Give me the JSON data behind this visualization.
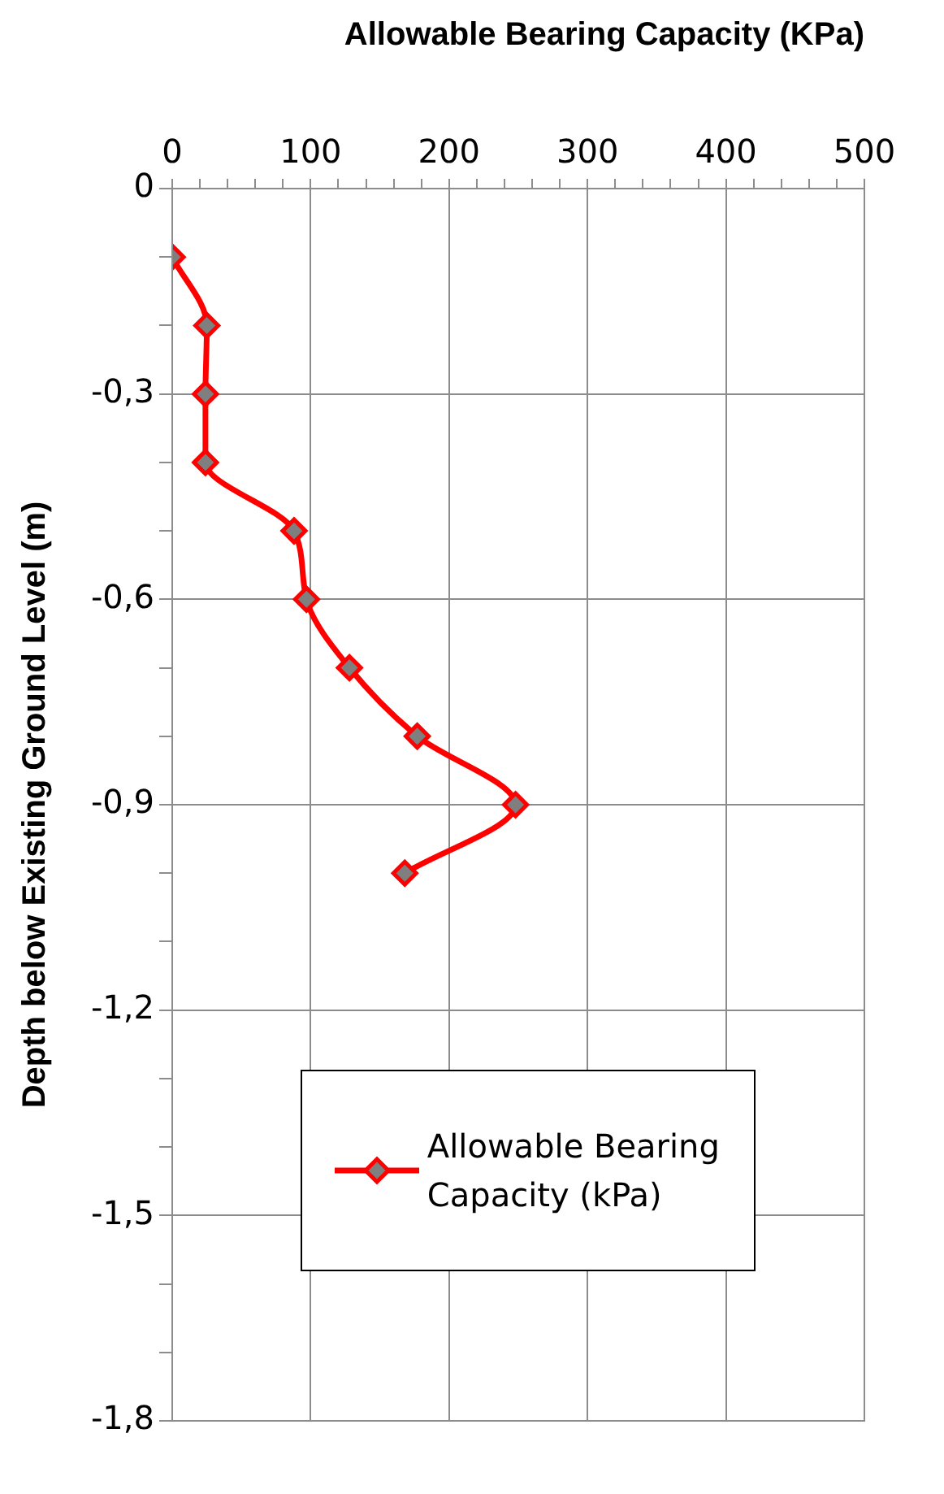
{
  "chart_data": {
    "type": "line",
    "xlabel": "Allowable Bearing Capacity (KPa)",
    "ylabel": "Depth below Existing Ground Level (m)",
    "xlim": [
      0,
      500
    ],
    "ylim": [
      -1.8,
      0
    ],
    "xticks": [
      0,
      {
        "value": 20,
        "label": null
      },
      {
        "value": 40,
        "label": null
      },
      {
        "value": 60,
        "label": null
      },
      {
        "value": 80,
        "label": null
      },
      100,
      {
        "value": 120,
        "label": null
      },
      {
        "value": 140,
        "label": null
      },
      {
        "value": 160,
        "label": null
      },
      {
        "value": 180,
        "label": null
      },
      200,
      {
        "value": 220,
        "label": null
      },
      {
        "value": 240,
        "label": null
      },
      {
        "value": 260,
        "label": null
      },
      {
        "value": 280,
        "label": null
      },
      300,
      {
        "value": 320,
        "label": null
      },
      {
        "value": 340,
        "label": null
      },
      {
        "value": 360,
        "label": null
      },
      {
        "value": 380,
        "label": null
      },
      400,
      {
        "value": 420,
        "label": null
      },
      {
        "value": 440,
        "label": null
      },
      {
        "value": 460,
        "label": null
      },
      {
        "value": 480,
        "label": null
      },
      500
    ],
    "yticks": [
      {
        "value": -1.8,
        "label": "-1,8"
      },
      {
        "value": -1.7,
        "label": null
      },
      {
        "value": -1.6,
        "label": null
      },
      {
        "value": -1.5,
        "label": "-1,5"
      },
      {
        "value": -1.4,
        "label": null
      },
      {
        "value": -1.3,
        "label": null
      },
      {
        "value": -1.2,
        "label": "-1,2"
      },
      {
        "value": -1.1,
        "label": null
      },
      {
        "value": -1.0,
        "label": null
      },
      {
        "value": -0.9,
        "label": "-0,9"
      },
      {
        "value": -0.8,
        "label": null
      },
      {
        "value": -0.7,
        "label": null
      },
      {
        "value": -0.6,
        "label": "-0,6"
      },
      {
        "value": -0.5,
        "label": null
      },
      {
        "value": -0.4,
        "label": null
      },
      {
        "value": -0.3,
        "label": "-0,3"
      },
      {
        "value": -0.2,
        "label": null
      },
      {
        "value": -0.1,
        "label": null
      },
      0
    ],
    "grid": true,
    "legend": "bottom right",
    "marker": "diamond",
    "line_style": "solid",
    "series": [
      {
        "name": "Allowable Bearing Capacity (kPa)",
        "color": "#ff0000",
        "x": [
          0,
          25,
          24,
          24,
          88,
          97,
          128,
          177,
          248,
          168
        ],
        "values": [
          -0.1,
          -0.2,
          -0.3,
          -0.4,
          -0.5,
          -0.6,
          -0.7,
          -0.8,
          -0.9,
          -1.0
        ]
      }
    ]
  }
}
